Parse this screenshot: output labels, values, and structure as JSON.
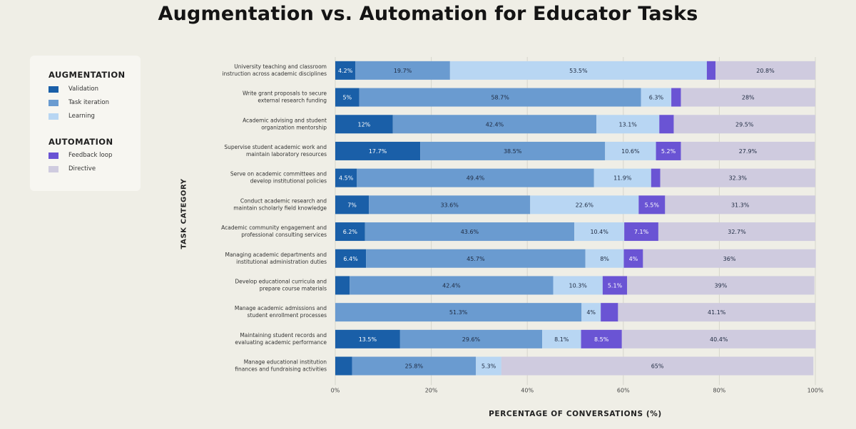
{
  "title": "Augmentation vs. Automation for Educator Tasks",
  "legend": {
    "augmentation_heading": "AUGMENTATION",
    "automation_heading": "AUTOMATION",
    "items": [
      {
        "label": "Validation",
        "color": "#1a5fa8"
      },
      {
        "label": "Task iteration",
        "color": "#6a9bd0"
      },
      {
        "label": "Learning",
        "color": "#b8d6f3"
      },
      {
        "label": "Feedback loop",
        "color": "#6a54d4"
      },
      {
        "label": "Directive",
        "color": "#cfcbdf"
      }
    ]
  },
  "chart_data": {
    "type": "bar",
    "orientation": "horizontal",
    "stacked": true,
    "xlabel": "PERCENTAGE OF CONVERSATIONS (%)",
    "ylabel": "TASK CATEGORY",
    "xlim": [
      0,
      100
    ],
    "xticks": [
      "0%",
      "20%",
      "40%",
      "60%",
      "80%",
      "100%"
    ],
    "grid": true,
    "legend_position": "left",
    "categories": [
      [
        "University teaching and classroom",
        "instruction across academic disciplines"
      ],
      [
        "Write grant proposals to secure",
        "external research funding"
      ],
      [
        "Academic advising and student",
        "organization mentorship"
      ],
      [
        "Supervise student academic work and",
        "maintain laboratory resources"
      ],
      [
        "Serve on academic committees and",
        "develop institutional policies"
      ],
      [
        "Conduct academic research and",
        "maintain scholarly field knowledge"
      ],
      [
        "Academic community engagement and",
        "professional consulting services"
      ],
      [
        "Managing academic departments and",
        "institutional administration duties"
      ],
      [
        "Develop educational curricula and",
        "prepare course materials"
      ],
      [
        "Manage academic admissions and",
        "student enrollment processes"
      ],
      [
        "Maintaining student records and",
        "evaluating academic performance"
      ],
      [
        "Manage educational institution",
        "finances and fundraising activities"
      ]
    ],
    "series": [
      {
        "name": "Validation",
        "color": "#1a5fa8",
        "values": [
          4.2,
          5,
          12,
          17.7,
          4.5,
          7,
          6.2,
          6.4,
          3.0,
          0,
          13.5,
          3.5
        ],
        "labels": [
          "4.2%",
          "5%",
          "12%",
          "17.7%",
          "4.5%",
          "7%",
          "6.2%",
          "6.4%",
          "",
          "",
          "13.5%",
          ""
        ]
      },
      {
        "name": "Task iteration",
        "color": "#6a9bd0",
        "values": [
          19.7,
          58.7,
          42.4,
          38.5,
          49.4,
          33.6,
          43.6,
          45.7,
          42.4,
          51.3,
          29.6,
          25.8
        ],
        "labels": [
          "19.7%",
          "58.7%",
          "42.4%",
          "38.5%",
          "49.4%",
          "33.6%",
          "43.6%",
          "45.7%",
          "42.4%",
          "51.3%",
          "29.6%",
          "25.8%"
        ]
      },
      {
        "name": "Learning",
        "color": "#b8d6f3",
        "values": [
          53.5,
          6.3,
          13.1,
          10.6,
          11.9,
          22.6,
          10.4,
          8,
          10.3,
          4,
          8.1,
          5.3
        ],
        "labels": [
          "53.5%",
          "6.3%",
          "13.1%",
          "10.6%",
          "11.9%",
          "22.6%",
          "10.4%",
          "8%",
          "10.3%",
          "4%",
          "8.1%",
          "5.3%"
        ]
      },
      {
        "name": "Feedback loop",
        "color": "#6a54d4",
        "values": [
          1.8,
          2.0,
          3.0,
          5.2,
          1.9,
          5.5,
          7.1,
          4,
          5.1,
          3.6,
          8.5,
          0
        ],
        "labels": [
          "",
          "",
          "",
          "5.2%",
          "",
          "5.5%",
          "7.1%",
          "4%",
          "5.1%",
          "",
          "8.5%",
          ""
        ]
      },
      {
        "name": "Directive",
        "color": "#cfcbdf",
        "values": [
          20.8,
          28,
          29.5,
          27.9,
          32.3,
          31.3,
          32.7,
          36,
          39,
          41.1,
          40.4,
          65
        ],
        "labels": [
          "20.8%",
          "28%",
          "29.5%",
          "27.9%",
          "32.3%",
          "31.3%",
          "32.7%",
          "36%",
          "39%",
          "41.1%",
          "40.4%",
          "65%"
        ]
      }
    ]
  }
}
